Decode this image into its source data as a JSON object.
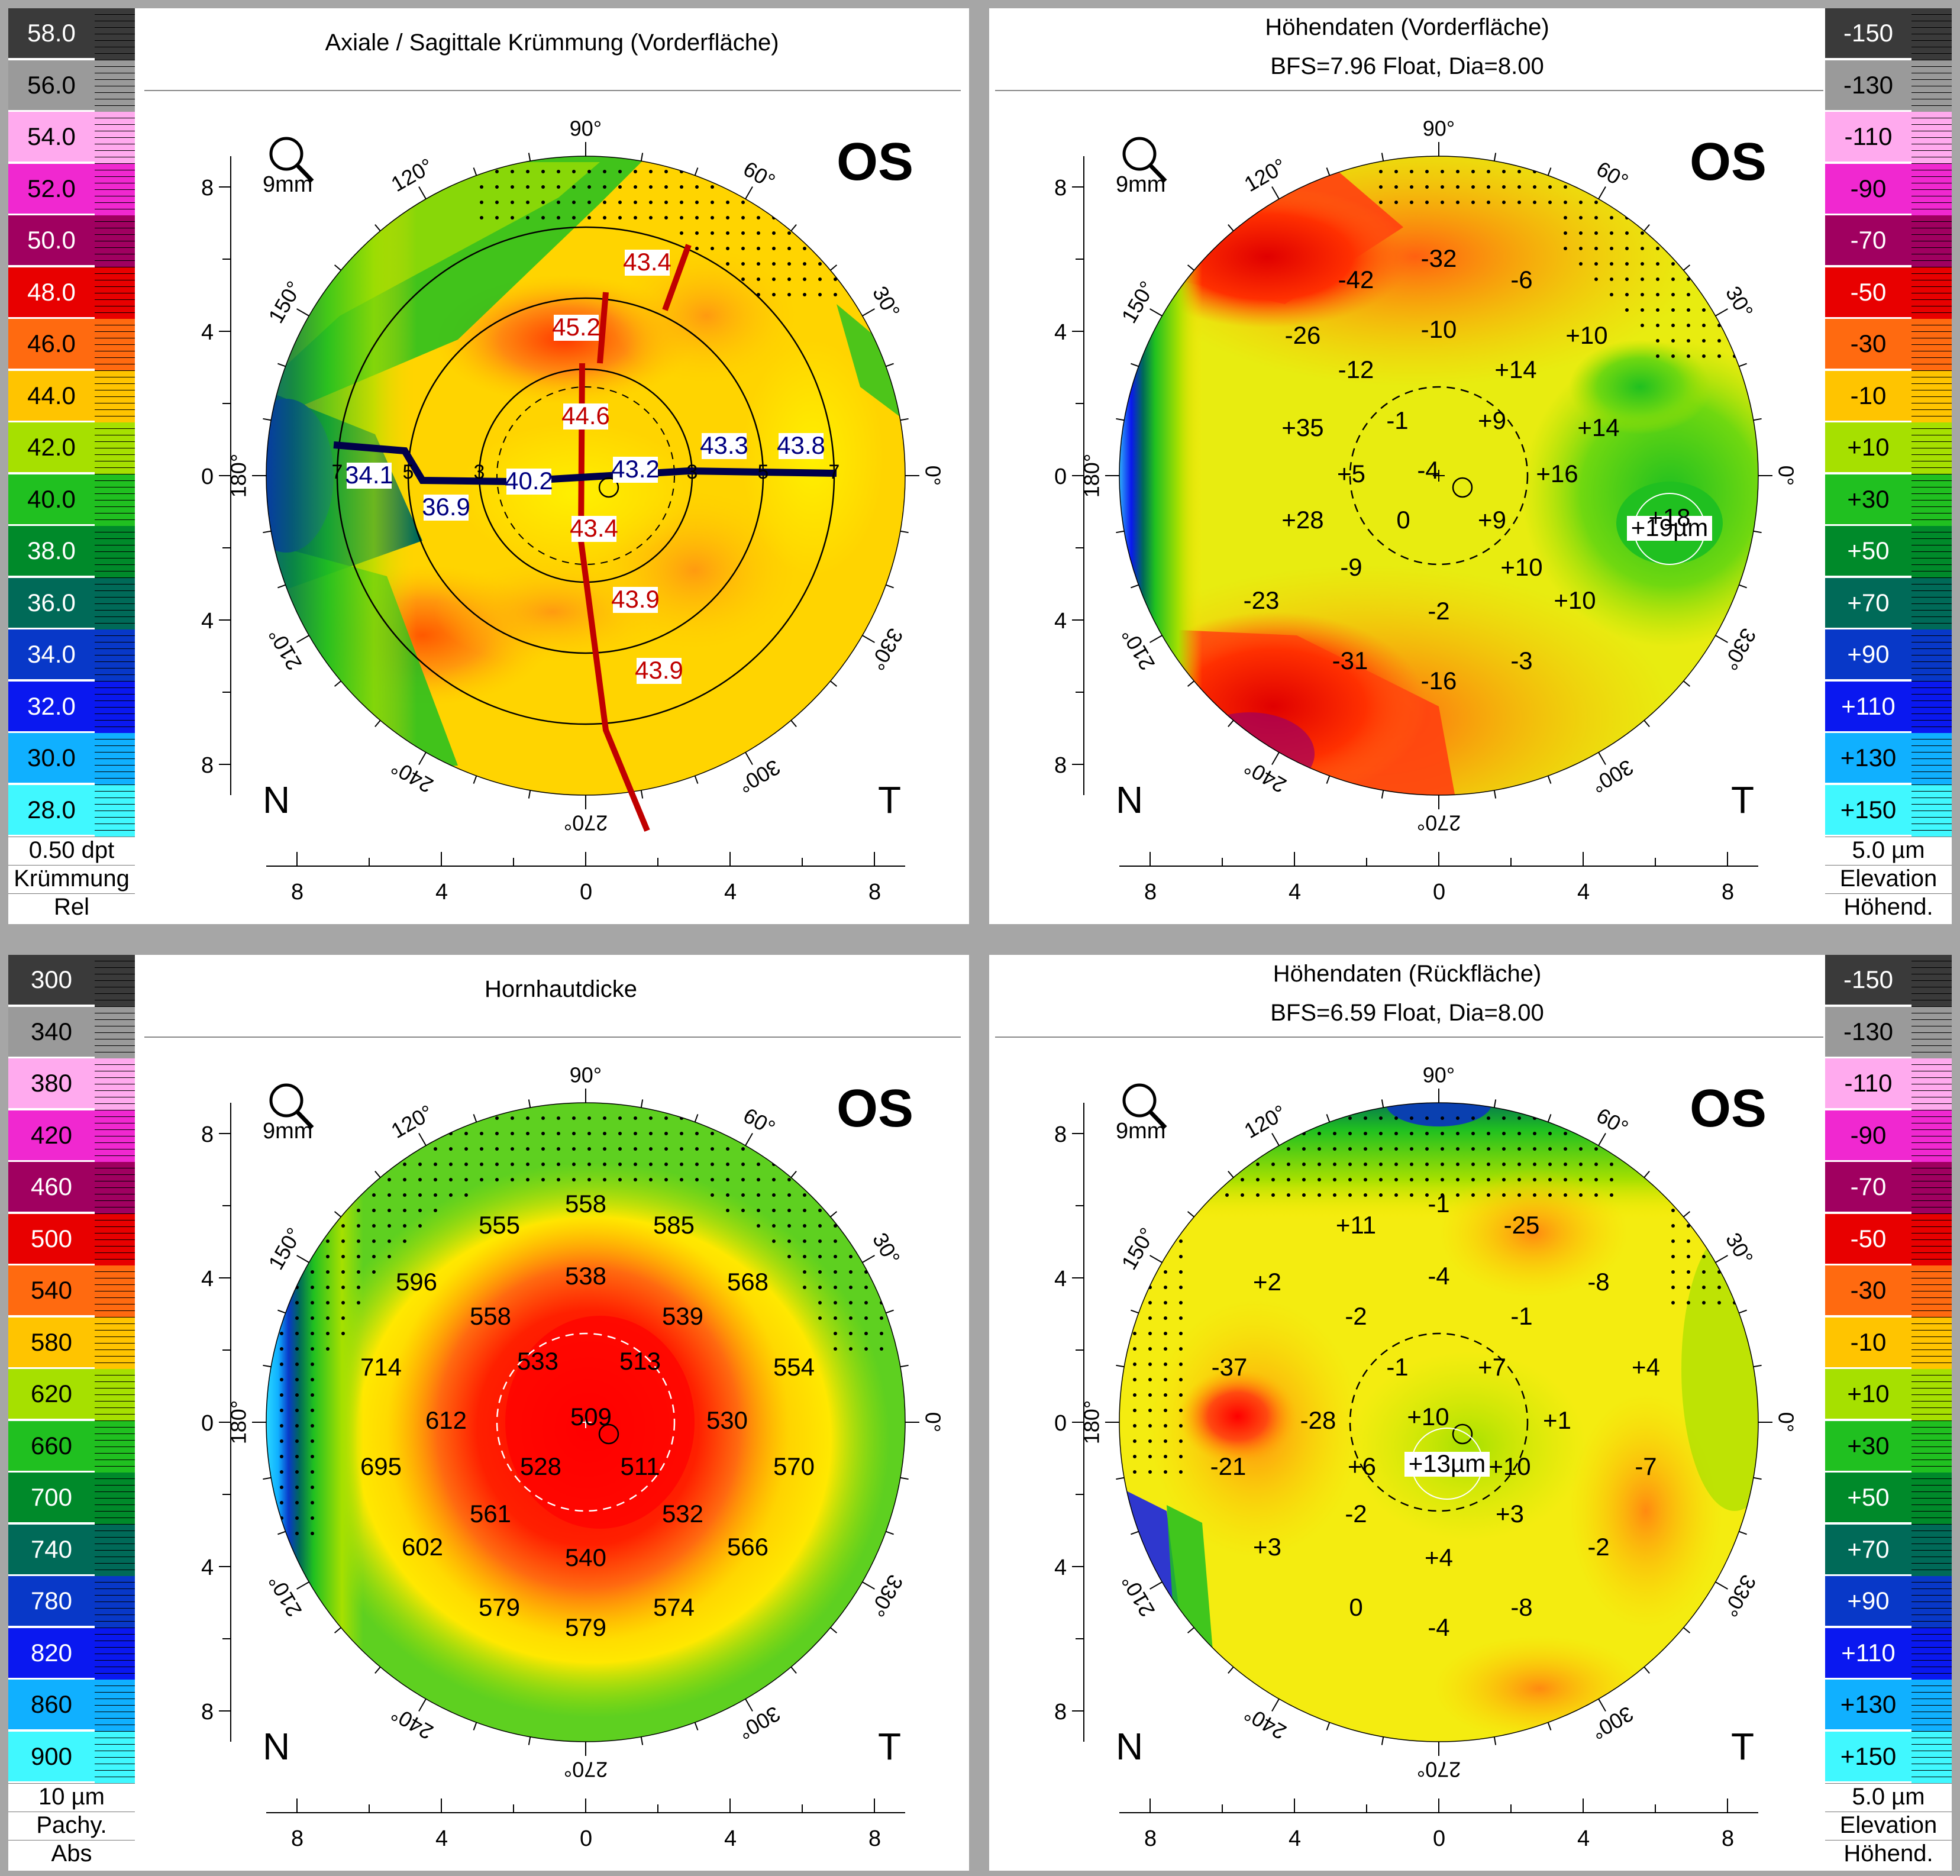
{
  "panels": {
    "axial": {
      "title": "Axiale / Sagittale Krümmung (Vorderfläche)",
      "eye": "OS",
      "zoom": "9mm",
      "nasal": "N",
      "temporal": "T",
      "scale": {
        "values": [
          "58.0",
          "56.0",
          "54.0",
          "52.0",
          "50.0",
          "48.0",
          "46.0",
          "44.0",
          "42.0",
          "40.0",
          "38.0",
          "36.0",
          "34.0",
          "32.0",
          "30.0",
          "28.0"
        ],
        "footer": [
          "0.50 dpt",
          "Krümmung",
          "Rel"
        ]
      },
      "readings_red": [
        "43.4",
        "45.2",
        "44.6",
        "43.4",
        "43.9",
        "43.9"
      ],
      "readings_blue": [
        "34.1",
        "36.9",
        "40.2",
        "43.2",
        "43.3",
        "43.8"
      ],
      "ring_markers": [
        "7",
        "5",
        "3",
        "3",
        "5",
        "7"
      ]
    },
    "front_elevation": {
      "title": "Höhendaten (Vorderfläche)",
      "subtitle": "BFS=7.96 Float, Dia=8.00",
      "eye": "OS",
      "zoom": "9mm",
      "nasal": "N",
      "temporal": "T",
      "scale": {
        "values": [
          "-150",
          "-130",
          "-110",
          "-90",
          "-70",
          "-50",
          "-30",
          "-10",
          "+10",
          "+30",
          "+50",
          "+70",
          "+90",
          "+110",
          "+130",
          "+150"
        ],
        "footer": [
          "5.0 µm",
          "Elevation",
          "Höhend."
        ]
      },
      "values": [
        "-42",
        "-32",
        "-6",
        "-26",
        "-10",
        "+10",
        "-12",
        "+14",
        "-1",
        "+9",
        "+35",
        "+14",
        "+5",
        "-4",
        "+16",
        "+28",
        "0",
        "+9",
        "+18",
        "-9",
        "+10",
        "+10",
        "-23",
        "-2",
        "-31",
        "-3",
        "-16"
      ],
      "highlight": "+19µm"
    },
    "pachymetry": {
      "title": "Hornhautdicke",
      "eye": "OS",
      "zoom": "9mm",
      "nasal": "N",
      "temporal": "T",
      "scale": {
        "values": [
          "300",
          "340",
          "380",
          "420",
          "460",
          "500",
          "540",
          "580",
          "620",
          "660",
          "700",
          "740",
          "780",
          "820",
          "860",
          "900"
        ],
        "footer": [
          "10 µm",
          "Pachy.",
          "Abs"
        ]
      },
      "values": [
        "555",
        "558",
        "585",
        "596",
        "538",
        "568",
        "558",
        "539",
        "714",
        "533",
        "513",
        "554",
        "612",
        "509",
        "530",
        "695",
        "528",
        "511",
        "570",
        "561",
        "532",
        "602",
        "540",
        "566",
        "579",
        "574",
        "579"
      ]
    },
    "back_elevation": {
      "title": "Höhendaten (Rückfläche)",
      "subtitle": "BFS=6.59 Float, Dia=8.00",
      "eye": "OS",
      "zoom": "9mm",
      "nasal": "N",
      "temporal": "T",
      "scale": {
        "values": [
          "-150",
          "-130",
          "-110",
          "-90",
          "-70",
          "-50",
          "-30",
          "-10",
          "+10",
          "+30",
          "+50",
          "+70",
          "+90",
          "+110",
          "+130",
          "+150"
        ],
        "footer": [
          "5.0 µm",
          "Elevation",
          "Höhend."
        ]
      },
      "values": [
        "+11",
        "-1",
        "-25",
        "+2",
        "-4",
        "-8",
        "-2",
        "-1",
        "-37",
        "-1",
        "+7",
        "+4",
        "-28",
        "+10",
        "+1",
        "-21",
        "+6",
        "+10",
        "-7",
        "-2",
        "+3",
        "+3",
        "+4",
        "-2",
        "0",
        "-8",
        "-4"
      ],
      "highlight": "+13µm"
    }
  },
  "axis": {
    "y_ticks": [
      "8",
      "4",
      "0",
      "4",
      "8"
    ],
    "x_ticks": [
      "8",
      "4",
      "0",
      "4",
      "8"
    ],
    "angles": [
      "90°",
      "120°",
      "60°",
      "150°",
      "30°",
      "180°",
      "0°",
      "210°",
      "330°",
      "240°",
      "300°",
      "270°"
    ]
  },
  "colors": {
    "curvature": [
      "#3a3a3a",
      "#9a9a9a",
      "#ffaaee",
      "#f028d0",
      "#a00060",
      "#e80000",
      "#ff6a10",
      "#ffc400",
      "#a6e000",
      "#20c020",
      "#008a2a",
      "#006a58",
      "#0838c8",
      "#0a18f0",
      "#10b0ff",
      "#40f8ff"
    ],
    "thickness": [
      "#3a3a3a",
      "#9a9a9a",
      "#ffaaee",
      "#f028d0",
      "#a00060",
      "#e80000",
      "#ff6a10",
      "#ffc400",
      "#a6e000",
      "#20c020",
      "#008a2a",
      "#006a58",
      "#0838c8",
      "#0a18f0",
      "#10b0ff",
      "#40f8ff"
    ],
    "elevation": [
      "#3a3a3a",
      "#9a9a9a",
      "#ffaaee",
      "#f028d0",
      "#a00060",
      "#e80000",
      "#ff6a10",
      "#ffc400",
      "#a6e000",
      "#20c020",
      "#008a2a",
      "#006a58",
      "#0838c8",
      "#0a18f0",
      "#10b0ff",
      "#40f8ff"
    ]
  }
}
